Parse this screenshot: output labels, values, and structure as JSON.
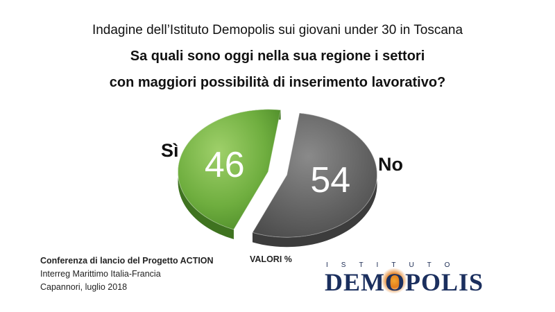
{
  "header": {
    "title": "Indagine dell’Istituto Demopolis sui giovani under 30 in Toscana",
    "question_line1": "Sa quali sono oggi nella sua regione i settori",
    "question_line2": "con maggiori possibilità di inserimento lavorativo?"
  },
  "chart_data": {
    "type": "pie",
    "categories": [
      "Sì",
      "No"
    ],
    "values": [
      46,
      54
    ],
    "colors": [
      "#7ab648",
      "#6b6b6b"
    ],
    "unit_note": "VALORI %"
  },
  "footer": {
    "line1": "Conferenza di lancio del Progetto ACTION",
    "line2": "Interreg Marittimo Italia-Francia",
    "line3": "Capannori, luglio 2018"
  },
  "logo": {
    "top": "ISTITUTO",
    "main_before": "DEM",
    "main_o": "O",
    "main_after": "POLIS"
  }
}
